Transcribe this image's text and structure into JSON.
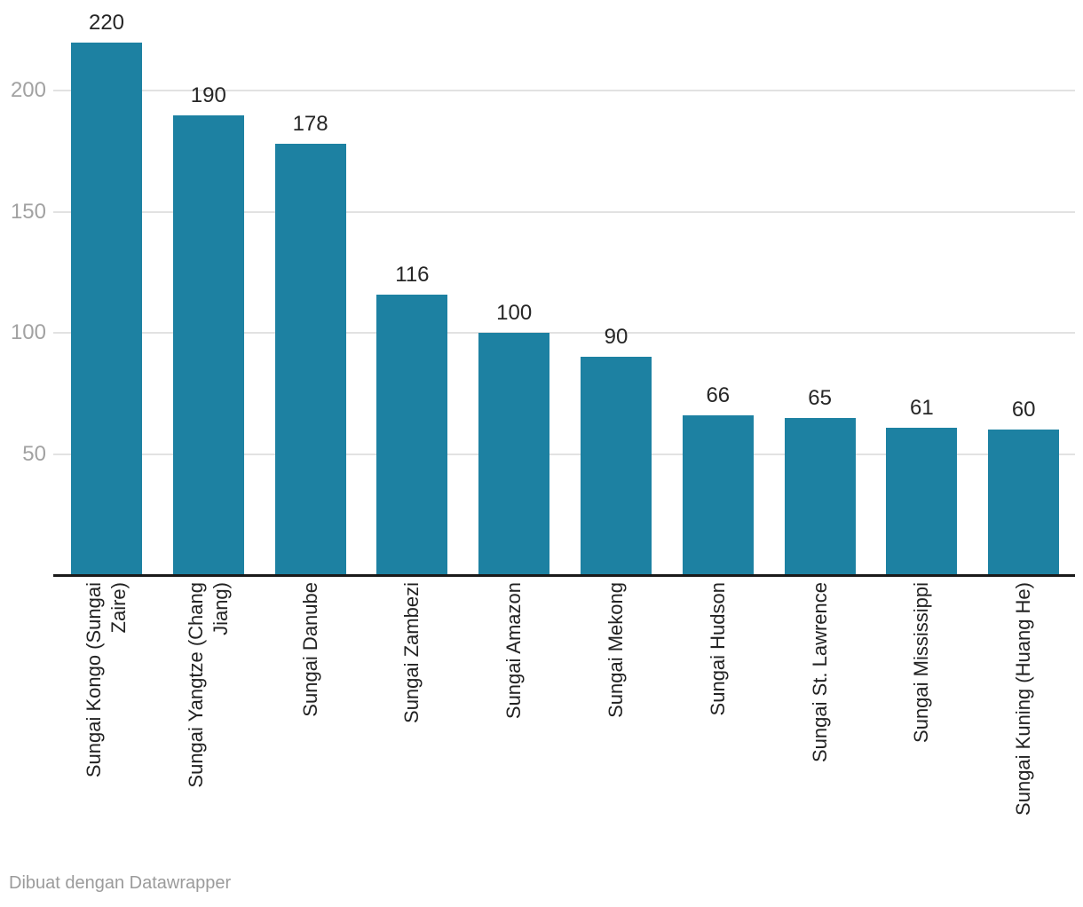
{
  "footer": {
    "attribution": "Dibuat dengan Datawrapper"
  },
  "colors": {
    "background": "#ffffff",
    "bar": "#1d81a2",
    "gridline": "#e2e2e2",
    "axis_line": "#1a1a1a",
    "y_tick_label": "#a2a2a2",
    "value_label": "#262626",
    "category_label": "#222222",
    "footer_text": "#9b9b9b"
  },
  "chart_data": {
    "type": "bar",
    "title": "",
    "xlabel": "",
    "ylabel": "",
    "categories": [
      "Sungai Kongo (Sungai Zaire)",
      "Sungai Yangtze (Chang Jiang)",
      "Sungai Danube",
      "Sungai Zambezi",
      "Sungai Amazon",
      "Sungai Mekong",
      "Sungai Hudson",
      "Sungai St. Lawrence",
      "Sungai Mississippi",
      "Sungai Kuning (Huang He)"
    ],
    "categories_wrapped": [
      [
        "Sungai Kongo (Sungai",
        "Zaire)"
      ],
      [
        "Sungai Yangtze (Chang",
        "Jiang)"
      ],
      [
        "Sungai Danube"
      ],
      [
        "Sungai Zambezi"
      ],
      [
        "Sungai Amazon"
      ],
      [
        "Sungai Mekong"
      ],
      [
        "Sungai Hudson"
      ],
      [
        "Sungai St. Lawrence"
      ],
      [
        "Sungai Mississippi"
      ],
      [
        "Sungai Kuning (Huang He)"
      ]
    ],
    "values": [
      220,
      190,
      178,
      116,
      100,
      90,
      66,
      65,
      61,
      60
    ],
    "value_labels": [
      "220",
      "190",
      "178",
      "116",
      "100",
      "90",
      "66",
      "65",
      "61",
      "60"
    ],
    "yticks": [
      50,
      100,
      150,
      200
    ],
    "ylim": [
      0,
      237
    ],
    "grid": true,
    "legend": false,
    "bar_orientation": "vertical",
    "category_label_rotation_deg": -90
  }
}
